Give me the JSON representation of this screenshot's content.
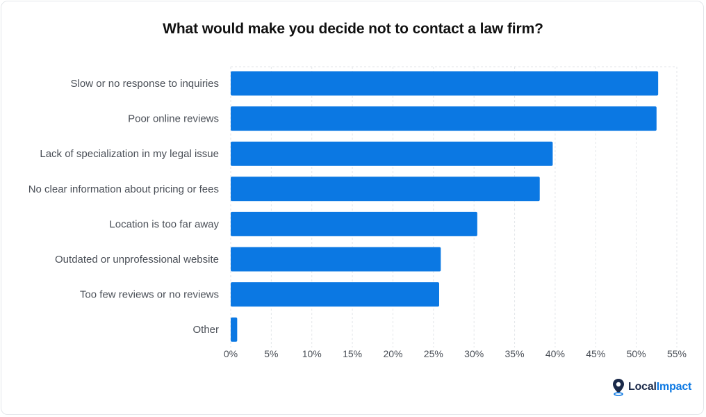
{
  "chart_data": {
    "type": "bar",
    "orientation": "horizontal",
    "title": "What would make you decide not to contact a law firm?",
    "categories": [
      "Slow or no response to inquiries",
      "Poor online reviews",
      "Lack of specialization in my legal issue",
      "No clear information about pricing or fees",
      "Location is too far away",
      "Outdated or unprofessional website",
      "Too few reviews or no reviews",
      "Other"
    ],
    "values": [
      52.7,
      52.5,
      39.7,
      38.1,
      30.4,
      25.9,
      25.7,
      0.8
    ],
    "value_unit": "%",
    "xlim": [
      0,
      55
    ],
    "xticks": [
      "0%",
      "5%",
      "10%",
      "15%",
      "20%",
      "25%",
      "30%",
      "35%",
      "40%",
      "45%",
      "50%",
      "55%"
    ],
    "xlabel": "",
    "ylabel": "",
    "grid": true,
    "bar_color": "#0b78e3",
    "grid_color": "#e3e6ea"
  },
  "brand": {
    "logo_prefix": "Local",
    "logo_suffix": "Impact",
    "icon": "map-pin-icon",
    "color": "#0b78e3"
  }
}
